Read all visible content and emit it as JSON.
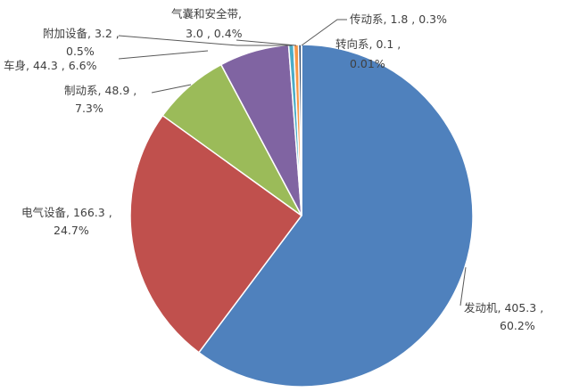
{
  "chart_data": {
    "type": "pie",
    "start": "top",
    "direction": "clockwise",
    "slices": [
      {
        "label": "发动机",
        "value": 405.3,
        "percent": "60.2%",
        "color": "#4F81BD"
      },
      {
        "label": "电气设备",
        "value": 166.3,
        "percent": "24.7%",
        "color": "#C0504D"
      },
      {
        "label": "制动系",
        "value": 48.9,
        "percent": "7.3%",
        "color": "#9BBB59"
      },
      {
        "label": "车身",
        "value": 44.3,
        "percent": "6.6%",
        "color": "#8064A2"
      },
      {
        "label": "附加设备",
        "value": 3.2,
        "percent": "0.5%",
        "color": "#4BACC6"
      },
      {
        "label": "气囊和安全带",
        "value": 3.0,
        "percent": "0.4%",
        "color": "#F79646"
      },
      {
        "label": "传动系",
        "value": 1.8,
        "percent": "0.3%",
        "color": "#2C4D75"
      },
      {
        "label": "转向系",
        "value": 0.1,
        "percent": "0.01%",
        "color": "#772C2A"
      }
    ]
  }
}
